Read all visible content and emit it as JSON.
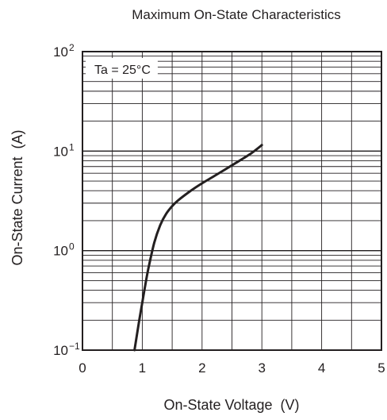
{
  "chart_data": {
    "type": "line",
    "title": "Maximum On-State Characteristics",
    "xlabel": "On-State Voltage  (V)",
    "ylabel": "On-State Current  (A)",
    "xlim": [
      0,
      5
    ],
    "ylim": [
      0.1,
      100
    ],
    "y_scale": "log",
    "grid": true,
    "x_ticks": [
      "0",
      "1",
      "2",
      "3",
      "4",
      "5"
    ],
    "y_ticks": [
      {
        "base": "10",
        "exp": "−1",
        "value": 0.1
      },
      {
        "base": "10",
        "exp": "0",
        "value": 1
      },
      {
        "base": "10",
        "exp": "1",
        "value": 10
      },
      {
        "base": "10",
        "exp": "2",
        "value": 100
      }
    ],
    "annotation": "Ta = 25°C",
    "series": [
      {
        "color": "#231f20",
        "x": [
          0.87,
          0.95,
          1.0,
          1.05,
          1.1,
          1.2,
          1.3,
          1.4,
          1.5,
          1.6,
          1.8,
          2.0,
          2.2,
          2.5,
          2.8,
          3.0
        ],
        "y": [
          0.1,
          0.2,
          0.3,
          0.45,
          0.65,
          1.2,
          1.8,
          2.35,
          2.8,
          3.2,
          3.95,
          4.75,
          5.6,
          7.2,
          9.3,
          11.5
        ]
      }
    ]
  }
}
